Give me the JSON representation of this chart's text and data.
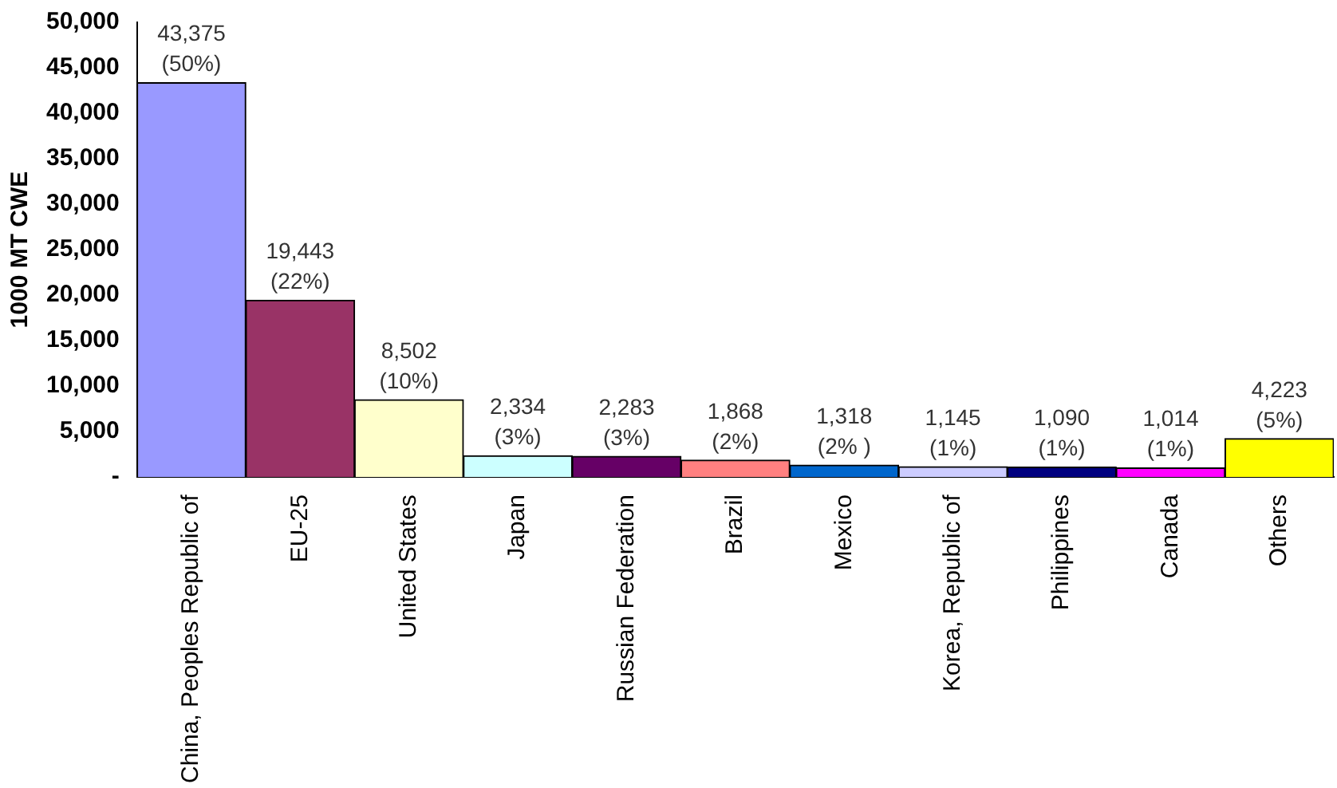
{
  "chart_data": {
    "type": "bar",
    "ylabel": "1000 MT CWE",
    "categories": [
      "China, Peoples Republic of",
      "EU-25",
      "United States",
      "Japan",
      "Russian Federation",
      "Brazil",
      "Mexico",
      "Korea, Republic of",
      "Philippines",
      "Canada",
      "Others"
    ],
    "values": [
      43375,
      19443,
      8502,
      2334,
      2283,
      1868,
      1318,
      1145,
      1090,
      1014,
      4223
    ],
    "colors": [
      "#9999ff",
      "#993366",
      "#ffffcc",
      "#ccffff",
      "#660066",
      "#ff8080",
      "#0066cc",
      "#ccccff",
      "#000080",
      "#ff00ff",
      "#ffff00"
    ],
    "value_labels": [
      "43,375\n(50%)",
      "19,443\n(22%)",
      "8,502\n(10%)",
      "2,334\n(3%)",
      "2,283\n(3%)",
      "1,868\n(2%)",
      "1,318\n(2% )",
      "1,145\n(1%)",
      "1,090\n(1%)",
      "1,014\n(1%)",
      "4,223\n(5%)"
    ],
    "ylim": [
      0,
      50000
    ],
    "yticks": [
      {
        "value": 0,
        "label": "-"
      },
      {
        "value": 5000,
        "label": "5,000"
      },
      {
        "value": 10000,
        "label": "10,000"
      },
      {
        "value": 15000,
        "label": "15,000"
      },
      {
        "value": 20000,
        "label": "20,000"
      },
      {
        "value": 25000,
        "label": "25,000"
      },
      {
        "value": 30000,
        "label": "30,000"
      },
      {
        "value": 35000,
        "label": "35,000"
      },
      {
        "value": 40000,
        "label": "40,000"
      },
      {
        "value": 45000,
        "label": "45,000"
      },
      {
        "value": 50000,
        "label": "50,000"
      }
    ],
    "grid": false,
    "legend": false
  }
}
